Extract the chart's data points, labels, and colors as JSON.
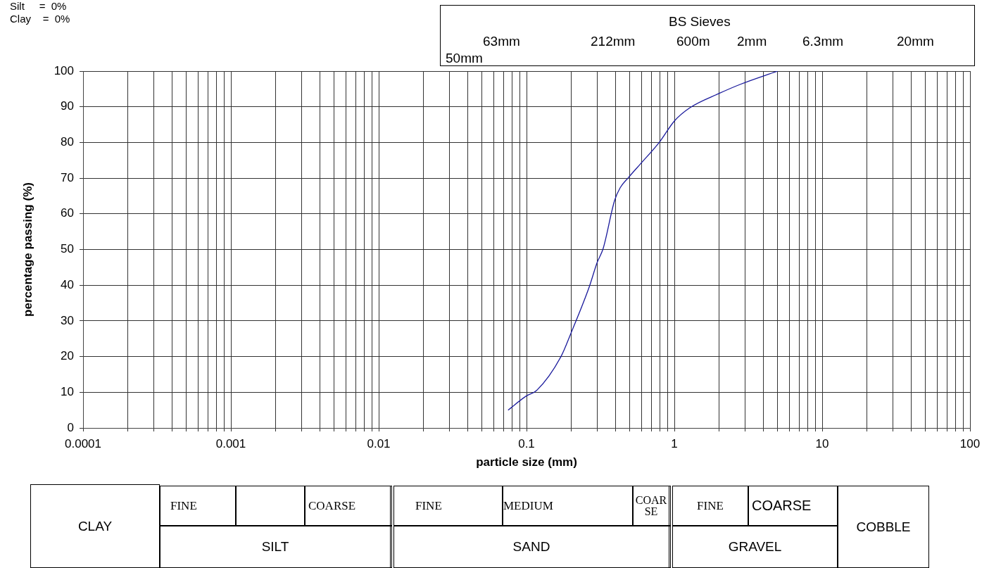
{
  "chart_data": {
    "type": "line",
    "xlabel": "particle size (mm)",
    "ylabel": "percentage passing (%)",
    "x": [
      0.075,
      0.1,
      0.117,
      0.171,
      0.2,
      0.266,
      0.3,
      0.33,
      0.394,
      0.43,
      0.49,
      0.59,
      0.79,
      1.0,
      1.27,
      2.0,
      2.8,
      5.0
    ],
    "series": [
      {
        "color": "#1a1a9c",
        "values": [
          5,
          9,
          10.5,
          20,
          26.6,
          39.6,
          46.3,
          50.3,
          63.7,
          67.3,
          70.2,
          74,
          80,
          86,
          89.7,
          93.7,
          96.3,
          100
        ]
      }
    ],
    "log": "x",
    "xlim": [
      0.0001,
      100
    ],
    "ylim": [
      0,
      100
    ],
    "xticks": [
      0.0001,
      {
        "value": 0.0002,
        "label": null
      },
      {
        "value": 0.0003,
        "label": null
      },
      {
        "value": 0.0004,
        "label": null
      },
      {
        "value": 0.0005,
        "label": null
      },
      {
        "value": 0.0006,
        "label": null
      },
      {
        "value": 0.0007,
        "label": null
      },
      {
        "value": 0.0008,
        "label": null
      },
      {
        "value": 0.0009,
        "label": null
      },
      0.001,
      {
        "value": 0.002,
        "label": null
      },
      {
        "value": 0.003,
        "label": null
      },
      {
        "value": 0.004,
        "label": null
      },
      {
        "value": 0.005,
        "label": null
      },
      {
        "value": 0.006,
        "label": null
      },
      {
        "value": 0.007,
        "label": null
      },
      {
        "value": 0.008,
        "label": null
      },
      {
        "value": 0.009,
        "label": null
      },
      0.01,
      {
        "value": 0.02,
        "label": null
      },
      {
        "value": 0.03,
        "label": null
      },
      {
        "value": 0.04,
        "label": null
      },
      {
        "value": 0.05,
        "label": null
      },
      {
        "value": 0.06,
        "label": null
      },
      {
        "value": 0.07,
        "label": null
      },
      {
        "value": 0.08,
        "label": null
      },
      {
        "value": 0.09,
        "label": null
      },
      0.1,
      {
        "value": 0.2,
        "label": null
      },
      {
        "value": 0.3,
        "label": null
      },
      {
        "value": 0.4,
        "label": null
      },
      {
        "value": 0.5,
        "label": null
      },
      {
        "value": 0.6,
        "label": null
      },
      {
        "value": 0.7,
        "label": null
      },
      {
        "value": 0.8,
        "label": null
      },
      {
        "value": 0.9,
        "label": null
      },
      1,
      {
        "value": 2,
        "label": null
      },
      {
        "value": 3,
        "label": null
      },
      {
        "value": 4,
        "label": null
      },
      {
        "value": 5,
        "label": null
      },
      {
        "value": 6,
        "label": null
      },
      {
        "value": 7,
        "label": null
      },
      {
        "value": 8,
        "label": null
      },
      {
        "value": 9,
        "label": null
      },
      10,
      {
        "value": 20,
        "label": null
      },
      {
        "value": 30,
        "label": null
      },
      {
        "value": 40,
        "label": null
      },
      {
        "value": 50,
        "label": null
      },
      {
        "value": 60,
        "label": null
      },
      {
        "value": 70,
        "label": null
      },
      {
        "value": 80,
        "label": null
      },
      {
        "value": 90,
        "label": null
      },
      100
    ],
    "yticks": [
      0,
      10,
      20,
      30,
      40,
      50,
      60,
      70,
      80,
      90,
      100
    ],
    "grid": true,
    "legend": false,
    "annotations": [
      "Silt     =  0%",
      "Clay    =  0%",
      "BS Sieves",
      "63mm",
      "212mm",
      "600m",
      "2mm",
      "6.3mm",
      "20mm",
      "50mm",
      "CLAY",
      "FINE",
      "COARSE",
      "SILT",
      "FINE",
      "MEDIUM",
      "COARSE",
      "SAND",
      "FINE",
      "COARSE",
      "GRAVEL",
      "COBBLE"
    ]
  }
}
